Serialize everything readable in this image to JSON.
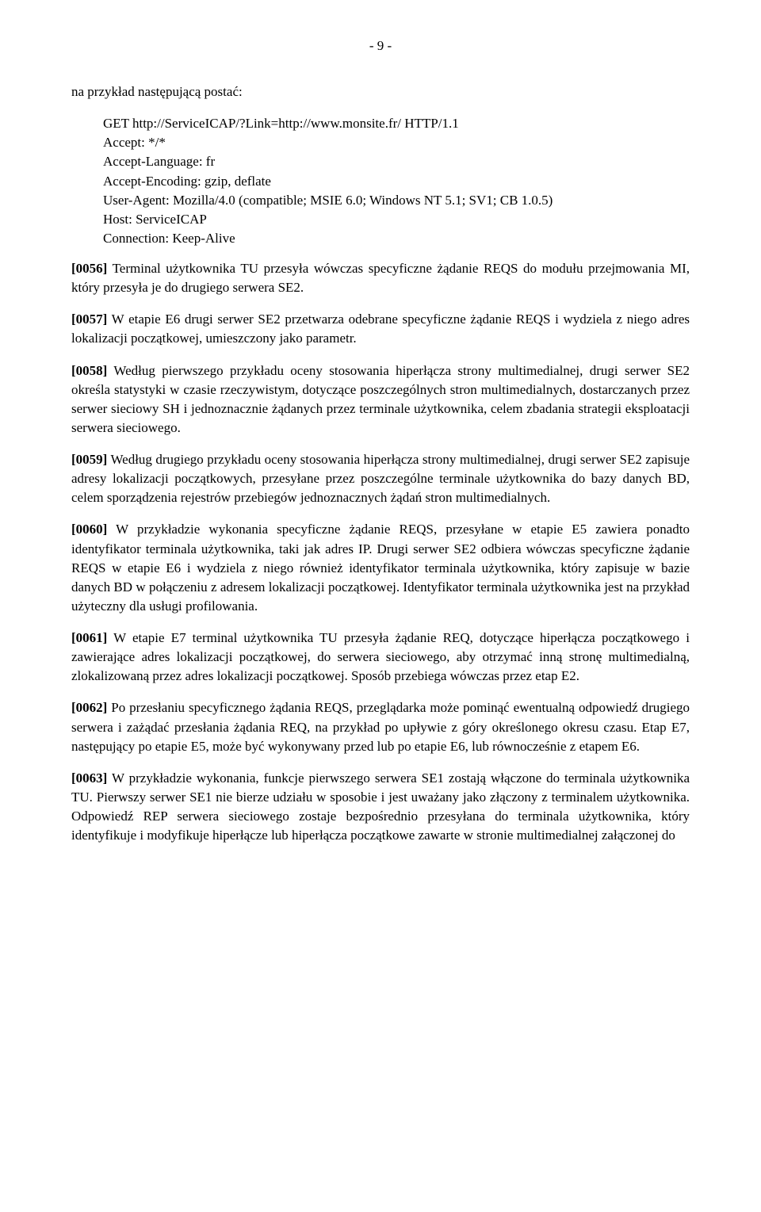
{
  "pageNumber": "- 9 -",
  "intro": "na przykład następującą postać:",
  "httpRequest": {
    "l1": "GET http://ServiceICAP/?Link=http://www.monsite.fr/ HTTP/1.1",
    "l2": "Accept: */*",
    "l3": "Accept-Language: fr",
    "l4": "Accept-Encoding: gzip, deflate",
    "l5": "User-Agent: Mozilla/4.0 (compatible; MSIE 6.0; Windows NT 5.1; SV1; CB 1.0.5)",
    "l6": "Host: ServiceICAP",
    "l7": "Connection: Keep-Alive"
  },
  "paragraphs": {
    "p0056": {
      "prefix": "[0056]",
      "text": " Terminal użytkownika TU przesyła wówczas specyficzne żądanie REQS do modułu przejmowania MI, który przesyła je do drugiego serwera SE2."
    },
    "p0057": {
      "prefix": "[0057]",
      "text": " W etapie E6 drugi serwer SE2 przetwarza odebrane specyficzne żądanie REQS i wydziela z niego adres lokalizacji początkowej, umieszczony jako parametr."
    },
    "p0058": {
      "prefix": "[0058]",
      "text": " Według pierwszego przykładu oceny stosowania hiperłącza strony multimedialnej, drugi serwer SE2 określa statystyki w czasie rzeczywistym, dotyczące poszczególnych stron multimedialnych, dostarczanych przez serwer sieciowy SH i jednoznacznie żądanych przez terminale użytkownika, celem zbadania strategii eksploatacji serwera sieciowego."
    },
    "p0059": {
      "prefix": "[0059]",
      "text": " Według drugiego przykładu oceny stosowania hiperłącza strony multimedialnej, drugi serwer SE2 zapisuje adresy lokalizacji początkowych, przesyłane przez poszczególne terminale użytkownika do bazy danych BD, celem sporządzenia rejestrów przebiegów jednoznacznych żądań stron multimedialnych."
    },
    "p0060": {
      "prefix": "[0060]",
      "text": " W przykładzie wykonania specyficzne żądanie REQS, przesyłane w etapie E5 zawiera ponadto identyfikator terminala użytkownika, taki jak adres IP. Drugi serwer SE2 odbiera wówczas specyficzne żądanie REQS w etapie E6 i wydziela z niego również identyfikator terminala użytkownika, który zapisuje w bazie danych BD w połączeniu z adresem lokalizacji początkowej. Identyfikator terminala użytkownika jest na przykład użyteczny dla usługi profilowania."
    },
    "p0061": {
      "prefix": "[0061]",
      "text": " W etapie E7 terminal użytkownika TU przesyła żądanie REQ, dotyczące hiperłącza początkowego i zawierające adres lokalizacji początkowej, do serwera sieciowego, aby otrzymać inną stronę multimedialną, zlokalizowaną przez adres lokalizacji początkowej. Sposób przebiega wówczas przez etap E2."
    },
    "p0062": {
      "prefix": "[0062]",
      "text": " Po przesłaniu specyficznego żądania REQS, przeglądarka może pominąć ewentualną odpowiedź drugiego serwera i zażądać przesłania żądania REQ, na przykład po upływie z góry określonego okresu czasu. Etap E7, następujący po etapie E5, może być wykonywany przed lub po etapie E6, lub równocześnie z etapem E6."
    },
    "p0063": {
      "prefix": "[0063]",
      "text": " W przykładzie wykonania, funkcje pierwszego serwera SE1 zostają włączone do terminala użytkownika TU. Pierwszy serwer SE1 nie bierze udziału w sposobie i jest uważany jako złączony z terminalem użytkownika. Odpowiedź REP serwera sieciowego zostaje bezpośrednio przesyłana do terminala użytkownika, który identyfikuje i modyfikuje hiperłącze lub hiperłącza początkowe zawarte w stronie multimedialnej załączonej do"
    }
  }
}
